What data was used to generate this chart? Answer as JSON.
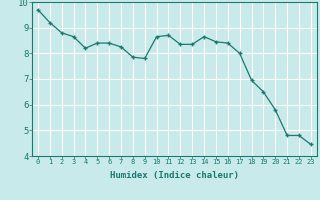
{
  "x": [
    0,
    1,
    2,
    3,
    4,
    5,
    6,
    7,
    8,
    9,
    10,
    11,
    12,
    13,
    14,
    15,
    16,
    17,
    18,
    19,
    20,
    21,
    22,
    23
  ],
  "y": [
    9.7,
    9.2,
    8.8,
    8.65,
    8.2,
    8.4,
    8.4,
    8.25,
    7.85,
    7.8,
    8.65,
    8.7,
    8.35,
    8.35,
    8.65,
    8.45,
    8.4,
    8.0,
    6.95,
    6.5,
    5.8,
    4.8,
    4.8,
    4.45
  ],
  "xlabel": "Humidex (Indice chaleur)",
  "ylim": [
    4,
    10
  ],
  "xlim": [
    -0.5,
    23.5
  ],
  "yticks": [
    4,
    5,
    6,
    7,
    8,
    9,
    10
  ],
  "xticks": [
    0,
    1,
    2,
    3,
    4,
    5,
    6,
    7,
    8,
    9,
    10,
    11,
    12,
    13,
    14,
    15,
    16,
    17,
    18,
    19,
    20,
    21,
    22,
    23
  ],
  "line_color": "#1a7a6e",
  "marker_color": "#1a7a6e",
  "bg_color": "#c8eaea",
  "grid_color": "#ffffff",
  "axis_bg": "#c8eaea",
  "tick_label_color": "#1a7a6e",
  "label_color": "#1a7a6e"
}
